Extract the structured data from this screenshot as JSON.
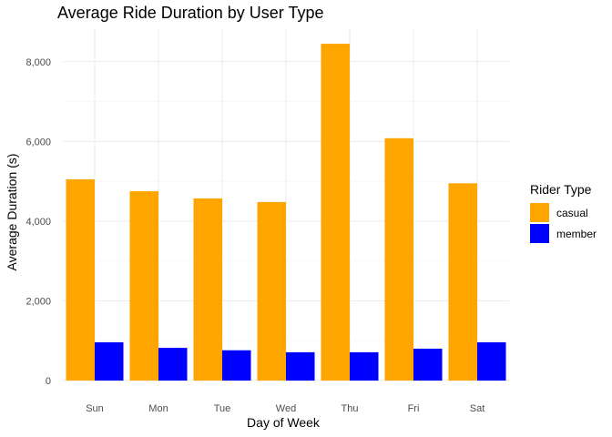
{
  "chart_data": {
    "type": "bar",
    "title": "Average Ride Duration by User Type",
    "xlabel": "Day of Week",
    "ylabel": "Average Duration (s)",
    "categories": [
      "Sun",
      "Mon",
      "Tue",
      "Wed",
      "Thu",
      "Fri",
      "Sat"
    ],
    "series": [
      {
        "name": "casual",
        "color": "#FFA500",
        "values": [
          5050,
          4750,
          4570,
          4480,
          8450,
          6080,
          4950
        ]
      },
      {
        "name": "member",
        "color": "#0000FF",
        "values": [
          960,
          820,
          760,
          710,
          710,
          800,
          960
        ]
      }
    ],
    "ylim": [
      0,
      8840
    ],
    "yticks": [
      0,
      2000,
      4000,
      6000,
      8000
    ],
    "ytick_labels": [
      "0",
      "2,000",
      "4,000",
      "6,000",
      "8,000"
    ],
    "grid": true,
    "legend": {
      "title": "Rider Type",
      "placement": "right"
    }
  }
}
